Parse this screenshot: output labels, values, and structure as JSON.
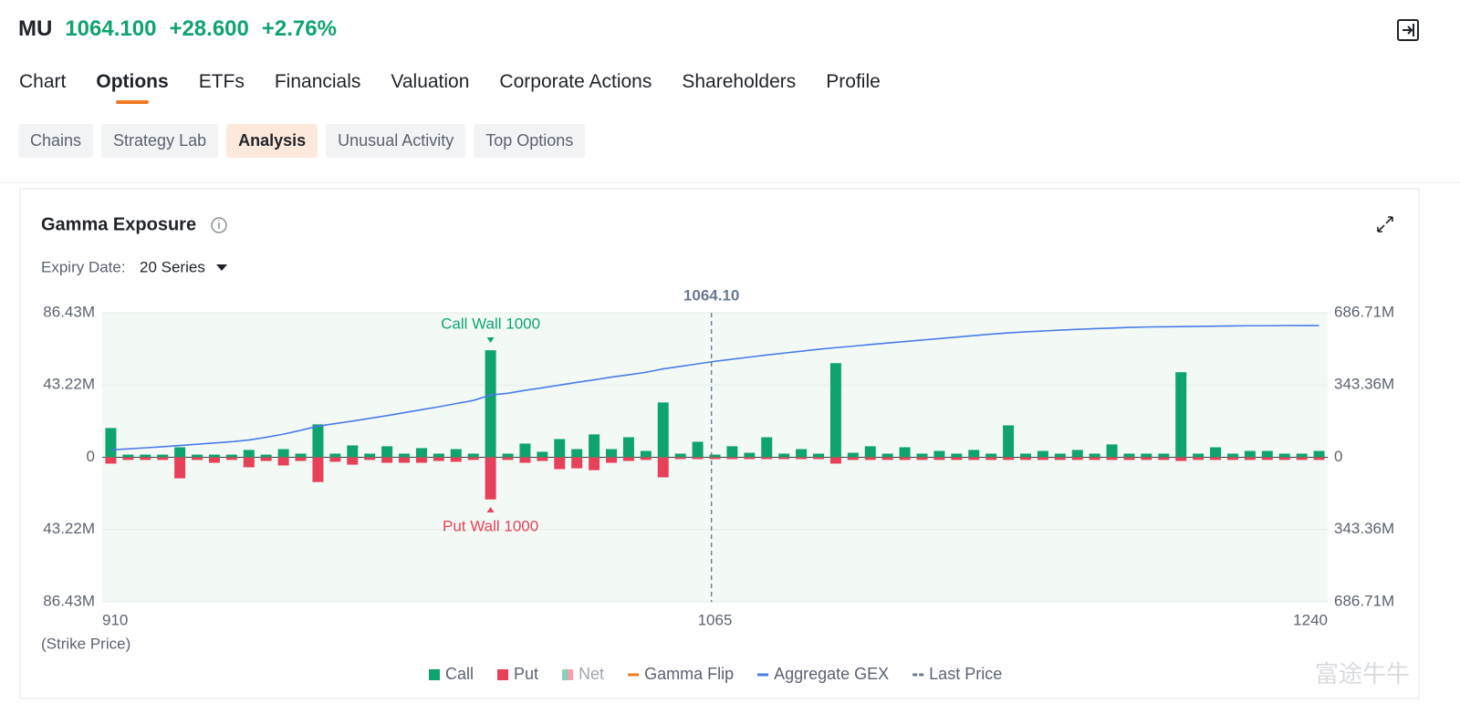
{
  "header": {
    "symbol": "MU",
    "price": "1064.100",
    "change": "+28.600",
    "change_pct": "+2.76%"
  },
  "tabs": [
    "Chart",
    "Options",
    "ETFs",
    "Financials",
    "Valuation",
    "Corporate Actions",
    "Shareholders",
    "Profile"
  ],
  "active_tab": 1,
  "subtabs": [
    "Chains",
    "Strategy Lab",
    "Analysis",
    "Unusual Activity",
    "Top Options"
  ],
  "active_subtab": 2,
  "expiry": {
    "label": "Expiry Date:",
    "value": "20 Series"
  },
  "watermark": "富途牛牛",
  "chart_data": {
    "type": "bar",
    "title": "Gamma Exposure",
    "xlabel": "(Strike Price)",
    "categories": [
      910,
      null,
      null,
      null,
      null,
      null,
      null,
      null,
      null,
      null,
      null,
      null,
      null,
      null,
      null,
      null,
      null,
      null,
      null,
      null,
      null,
      null,
      null,
      null,
      null,
      null,
      null,
      null,
      null,
      null,
      null,
      null,
      null,
      null,
      null,
      1065,
      null,
      null,
      null,
      null,
      null,
      null,
      null,
      null,
      null,
      null,
      null,
      null,
      null,
      null,
      null,
      null,
      null,
      null,
      null,
      null,
      null,
      null,
      null,
      null,
      null,
      null,
      null,
      null,
      null,
      null,
      null,
      null,
      null,
      null,
      1240
    ],
    "series": [
      {
        "name": "Call",
        "color": "#0fa46e",
        "values": [
          17.5,
          1.6,
          1.6,
          1.6,
          6.0,
          1.6,
          1.6,
          1.6,
          4.4,
          1.6,
          4.9,
          2.2,
          19.7,
          2.2,
          7.1,
          2.2,
          6.6,
          2.2,
          5.5,
          2.2,
          4.9,
          2.2,
          64.0,
          2.2,
          8.2,
          3.3,
          10.9,
          4.9,
          13.7,
          4.9,
          12.0,
          3.8,
          32.8,
          2.2,
          9.3,
          1.6,
          6.6,
          2.7,
          12.0,
          2.2,
          4.9,
          2.2,
          56.3,
          2.7,
          6.6,
          2.2,
          6.0,
          2.2,
          3.8,
          2.2,
          4.4,
          2.2,
          19.1,
          2.2,
          3.8,
          2.2,
          4.4,
          2.2,
          7.7,
          2.2,
          2.2,
          2.2,
          50.9,
          2.2,
          6.0,
          2.2,
          3.8,
          3.8,
          2.2,
          2.2,
          3.8
        ]
      },
      {
        "name": "Put",
        "color": "#e8405a",
        "values": [
          -3.8,
          -1.6,
          -1.6,
          -1.6,
          -12.6,
          -1.6,
          -3.3,
          -1.6,
          -6.0,
          -2.2,
          -4.9,
          -2.2,
          -14.8,
          -2.7,
          -4.4,
          -1.6,
          -3.3,
          -3.3,
          -3.3,
          -2.2,
          -2.7,
          -1.6,
          -25.2,
          -1.6,
          -3.3,
          -2.2,
          -7.1,
          -6.6,
          -7.7,
          -3.3,
          -2.2,
          -1.6,
          -12.0,
          -1.1,
          -1.1,
          -1.1,
          -1.1,
          -1.1,
          -1.1,
          -1.1,
          -1.1,
          -1.1,
          -3.8,
          -1.6,
          -1.6,
          -1.6,
          -1.6,
          -1.6,
          -1.6,
          -1.6,
          -1.6,
          -1.6,
          -1.6,
          -1.6,
          -1.6,
          -1.6,
          -1.6,
          -1.6,
          -1.6,
          -1.6,
          -1.6,
          -1.6,
          -2.2,
          -1.6,
          -1.6,
          -1.6,
          -1.6,
          -1.6,
          -1.6,
          -1.6,
          -1.6
        ]
      },
      {
        "name": "Aggregate GEX",
        "color": "#4a7be6",
        "axis": "y2",
        "values": [
          35,
          40,
          45,
          50,
          56,
          62,
          68,
          74,
          82,
          95,
          110,
          128,
          148,
          160,
          172,
          185,
          198,
          212,
          226,
          240,
          255,
          270,
          296,
          304,
          318,
          330,
          343,
          356,
          368,
          381,
          392,
          404,
          420,
          432,
          444,
          456,
          466,
          476,
          486,
          495,
          504,
          513,
          521,
          528,
          536,
          543,
          550,
          557,
          564,
          571,
          578,
          585,
          591,
          596,
          600,
          604,
          608,
          611,
          614,
          617,
          619,
          620,
          621,
          622,
          623,
          624,
          625,
          625,
          626,
          626,
          626
        ]
      }
    ],
    "legend_only": [
      {
        "name": "Net",
        "color": "#9aa3ad"
      },
      {
        "name": "Gamma Flip",
        "color": "#f07b22"
      }
    ],
    "last_price": {
      "name": "Last Price",
      "value": 1064.1,
      "label": "1064.10",
      "color": "#6b7a90"
    },
    "annotations": {
      "call_wall": "Call Wall 1000",
      "put_wall": "Put Wall 1000"
    },
    "ylim": [
      -86.43,
      86.43
    ],
    "yticks": [
      {
        "value": -86.43,
        "label": "86.43M"
      },
      {
        "value": -43.22,
        "label": "43.22M"
      },
      0,
      {
        "value": 43.22,
        "label": "43.22M"
      },
      {
        "value": 86.43,
        "label": "86.43M"
      }
    ],
    "y2lim": [
      -686.71,
      686.71
    ],
    "y2ticks": [
      {
        "value": -686.71,
        "label": "686.71M"
      },
      {
        "value": -343.36,
        "label": "343.36M"
      },
      0,
      {
        "value": 343.36,
        "label": "343.36M"
      },
      {
        "value": 686.71,
        "label": "686.71M"
      }
    ],
    "grid": true
  }
}
